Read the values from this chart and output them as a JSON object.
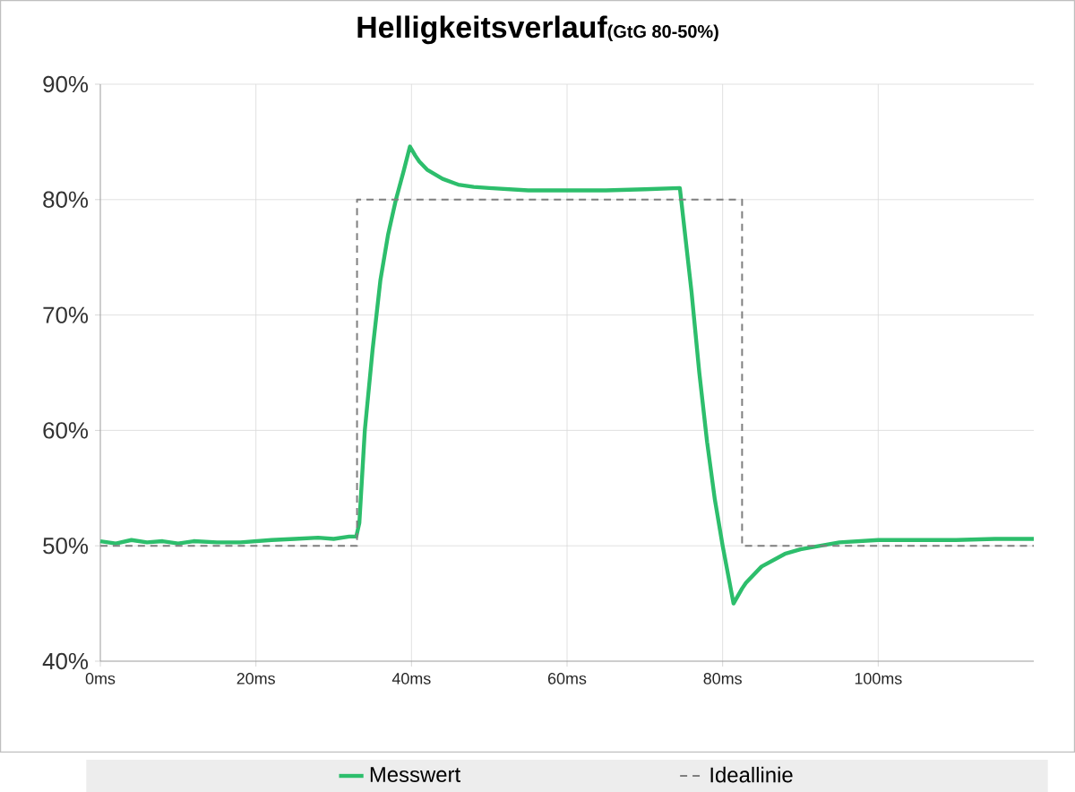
{
  "chart_data": {
    "type": "line",
    "title": "Helligkeitsverlauf",
    "subtitle": "(GtG 80-50%)",
    "xlim": [
      0,
      120
    ],
    "ylim": [
      40,
      90
    ],
    "xticks": [
      {
        "value": 0,
        "label": "0ms"
      },
      {
        "value": 20,
        "label": "20ms"
      },
      {
        "value": 40,
        "label": "40ms"
      },
      {
        "value": 60,
        "label": "60ms"
      },
      {
        "value": 80,
        "label": "80ms"
      },
      {
        "value": 100,
        "label": "100ms"
      }
    ],
    "yticks": [
      {
        "value": 40,
        "label": "40%"
      },
      {
        "value": 50,
        "label": "50%"
      },
      {
        "value": 60,
        "label": "60%"
      },
      {
        "value": 70,
        "label": "70%"
      },
      {
        "value": 80,
        "label": "80%"
      },
      {
        "value": 90,
        "label": "90%"
      }
    ],
    "grid": true,
    "legend": "bottom",
    "series": [
      {
        "name": "Messwert",
        "color": "#2dbe6c",
        "line_style": "solid",
        "x": [
          0,
          2,
          4,
          6,
          8,
          10,
          12,
          15,
          18,
          20,
          22,
          25,
          28,
          30,
          32,
          32.9,
          33.3,
          34,
          35,
          36,
          37,
          38,
          39,
          39.8,
          40.5,
          41,
          42,
          44,
          46,
          48,
          50,
          55,
          60,
          65,
          70,
          74.5,
          75,
          76,
          77,
          78,
          79,
          80,
          81.4,
          82.5,
          83,
          85,
          88,
          90,
          95,
          100,
          105,
          110,
          115,
          120
        ],
        "values": [
          50.4,
          50.2,
          50.5,
          50.3,
          50.4,
          50.2,
          50.4,
          50.3,
          50.3,
          50.4,
          50.5,
          50.6,
          50.7,
          50.6,
          50.8,
          50.8,
          52,
          60,
          67,
          73,
          77,
          80,
          82.5,
          84.6,
          83.8,
          83.3,
          82.6,
          81.8,
          81.3,
          81.1,
          81,
          80.8,
          80.8,
          80.8,
          80.9,
          81,
          78,
          72,
          65,
          59,
          54,
          50,
          45,
          46.3,
          46.8,
          48.2,
          49.3,
          49.7,
          50.3,
          50.5,
          50.5,
          50.5,
          50.6,
          50.6
        ]
      },
      {
        "name": "Ideallinie",
        "color": "#7f7f7f",
        "line_style": "dashed",
        "x": [
          0,
          33,
          33,
          82.5,
          82.5,
          120
        ],
        "values": [
          50,
          50,
          80,
          80,
          50,
          50
        ]
      }
    ]
  }
}
